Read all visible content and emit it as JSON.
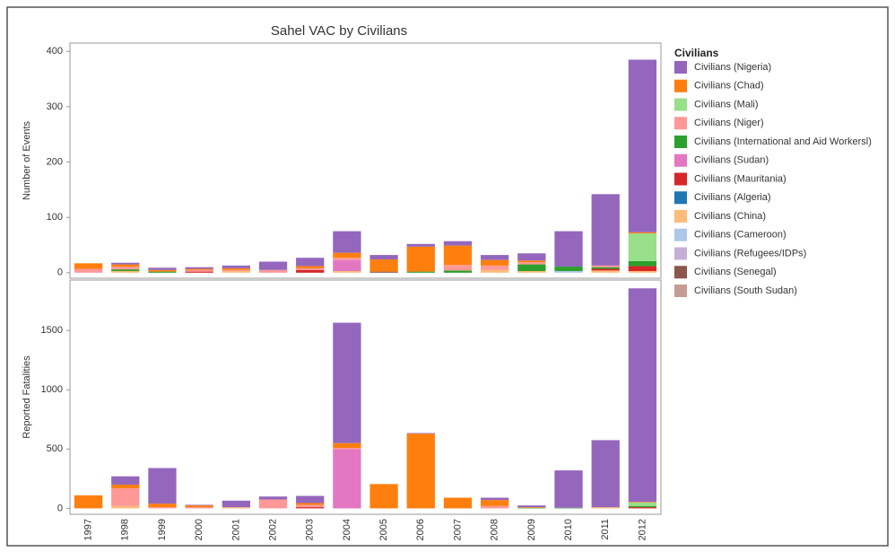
{
  "chart_data": [
    {
      "type": "bar",
      "stacked": true,
      "title": "Sahel VAC by Civilians",
      "legend_title": "Civilians",
      "ylabel": "Number of Events",
      "categories": [
        "1997",
        "1998",
        "1999",
        "2000",
        "2001",
        "2002",
        "2003",
        "2004",
        "2005",
        "2006",
        "2007",
        "2008",
        "2009",
        "2010",
        "2011",
        "2012"
      ],
      "ylim": [
        -10,
        415
      ],
      "yticks": [
        0,
        100,
        200,
        300,
        400
      ],
      "series": [
        {
          "name": "Civilians (Nigeria)",
          "color": "#9467bd",
          "values": [
            0,
            3,
            4,
            3,
            5,
            15,
            15,
            39,
            8,
            5,
            8,
            9,
            13,
            64,
            129,
            312
          ]
        },
        {
          "name": "Civilians (Chad)",
          "color": "#ff7f0e",
          "values": [
            10,
            4,
            3,
            2,
            3,
            0,
            4,
            9,
            22,
            45,
            35,
            10,
            3,
            0,
            0,
            2
          ]
        },
        {
          "name": "Civilians (Mali)",
          "color": "#98df8a",
          "values": [
            0,
            0,
            0,
            0,
            0,
            0,
            0,
            0,
            0,
            0,
            0,
            0,
            0,
            0,
            0,
            50
          ]
        },
        {
          "name": "Civilians (Niger)",
          "color": "#ff9896",
          "values": [
            7,
            5,
            0,
            3,
            2,
            5,
            3,
            4,
            0,
            0,
            10,
            8,
            4,
            0,
            3,
            0
          ]
        },
        {
          "name": "Civilians (International and Aid Workersl)",
          "color": "#2ca02c",
          "values": [
            0,
            3,
            2,
            0,
            0,
            0,
            0,
            0,
            0,
            2,
            4,
            0,
            12,
            8,
            3,
            9
          ]
        },
        {
          "name": "Civilians (Sudan)",
          "color": "#e377c2",
          "values": [
            0,
            0,
            0,
            0,
            0,
            0,
            0,
            20,
            0,
            0,
            0,
            0,
            0,
            0,
            0,
            0
          ]
        },
        {
          "name": "Civilians (Mauritania)",
          "color": "#d62728",
          "values": [
            0,
            0,
            0,
            2,
            0,
            0,
            5,
            0,
            0,
            0,
            0,
            0,
            0,
            0,
            3,
            9
          ]
        },
        {
          "name": "Civilians (Algeria)",
          "color": "#1f77b4",
          "values": [
            0,
            0,
            0,
            0,
            0,
            0,
            0,
            0,
            0,
            0,
            0,
            0,
            0,
            0,
            0,
            0
          ]
        },
        {
          "name": "Civilians (China)",
          "color": "#ffbb78",
          "values": [
            0,
            3,
            0,
            0,
            3,
            0,
            0,
            3,
            0,
            0,
            0,
            5,
            3,
            0,
            4,
            3
          ]
        },
        {
          "name": "Civilians (Cameroon)",
          "color": "#aec7e8",
          "values": [
            0,
            0,
            0,
            0,
            0,
            0,
            0,
            0,
            0,
            0,
            0,
            0,
            0,
            3,
            0,
            0
          ]
        },
        {
          "name": "Civilians (Refugees/IDPs)",
          "color": "#c5b0d5",
          "values": [
            0,
            0,
            0,
            0,
            0,
            0,
            0,
            0,
            0,
            0,
            0,
            0,
            0,
            0,
            0,
            0
          ]
        },
        {
          "name": "Civilians (Senegal)",
          "color": "#8c564b",
          "values": [
            0,
            0,
            0,
            0,
            0,
            0,
            0,
            0,
            2,
            0,
            0,
            0,
            0,
            0,
            0,
            0
          ]
        },
        {
          "name": "Civilians (South Sudan)",
          "color": "#c49c94",
          "values": [
            0,
            0,
            0,
            0,
            0,
            0,
            0,
            0,
            0,
            0,
            0,
            0,
            0,
            0,
            0,
            0
          ]
        }
      ]
    },
    {
      "type": "bar",
      "stacked": true,
      "ylabel": "Reported Fatalities",
      "ylim": [
        -50,
        1925
      ],
      "yticks": [
        0,
        500,
        1000,
        1500
      ],
      "series": [
        {
          "color": "#9467bd",
          "values": [
            0,
            70,
            300,
            5,
            55,
            25,
            60,
            1015,
            0,
            5,
            0,
            20,
            15,
            315,
            565,
            1800
          ]
        },
        {
          "color": "#ff7f0e",
          "values": [
            110,
            30,
            30,
            15,
            0,
            0,
            15,
            40,
            205,
            630,
            90,
            50,
            5,
            0,
            0,
            5
          ]
        },
        {
          "color": "#98df8a",
          "values": [
            0,
            0,
            0,
            0,
            0,
            0,
            0,
            0,
            0,
            0,
            0,
            0,
            0,
            0,
            0,
            30
          ]
        },
        {
          "color": "#ff9896",
          "values": [
            0,
            150,
            10,
            10,
            0,
            75,
            20,
            10,
            0,
            0,
            0,
            20,
            0,
            0,
            0,
            0
          ]
        },
        {
          "color": "#2ca02c",
          "values": [
            0,
            0,
            0,
            0,
            0,
            0,
            0,
            0,
            0,
            0,
            0,
            0,
            5,
            5,
            0,
            10
          ]
        },
        {
          "color": "#e377c2",
          "values": [
            0,
            0,
            0,
            0,
            0,
            0,
            0,
            500,
            0,
            0,
            0,
            0,
            0,
            0,
            0,
            0
          ]
        },
        {
          "color": "#d62728",
          "values": [
            0,
            0,
            0,
            0,
            0,
            0,
            10,
            0,
            0,
            0,
            0,
            0,
            0,
            0,
            0,
            10
          ]
        },
        {
          "color": "#1f77b4",
          "values": [
            0,
            0,
            0,
            0,
            0,
            0,
            0,
            0,
            0,
            0,
            0,
            0,
            0,
            0,
            0,
            0
          ]
        },
        {
          "color": "#ffbb78",
          "values": [
            0,
            20,
            0,
            0,
            10,
            0,
            0,
            0,
            0,
            0,
            0,
            0,
            0,
            0,
            10,
            0
          ]
        },
        {
          "color": "#aec7e8",
          "values": [
            0,
            0,
            0,
            0,
            0,
            0,
            0,
            0,
            0,
            0,
            0,
            0,
            0,
            0,
            0,
            0
          ]
        },
        {
          "color": "#c5b0d5",
          "values": [
            0,
            0,
            0,
            0,
            0,
            0,
            0,
            0,
            0,
            0,
            0,
            0,
            0,
            0,
            0,
            0
          ]
        },
        {
          "color": "#8c564b",
          "values": [
            0,
            0,
            0,
            0,
            0,
            0,
            0,
            0,
            0,
            0,
            0,
            0,
            0,
            0,
            0,
            0
          ]
        },
        {
          "color": "#c49c94",
          "values": [
            0,
            0,
            0,
            0,
            0,
            0,
            0,
            0,
            0,
            0,
            0,
            0,
            0,
            0,
            0,
            0
          ]
        }
      ]
    }
  ]
}
